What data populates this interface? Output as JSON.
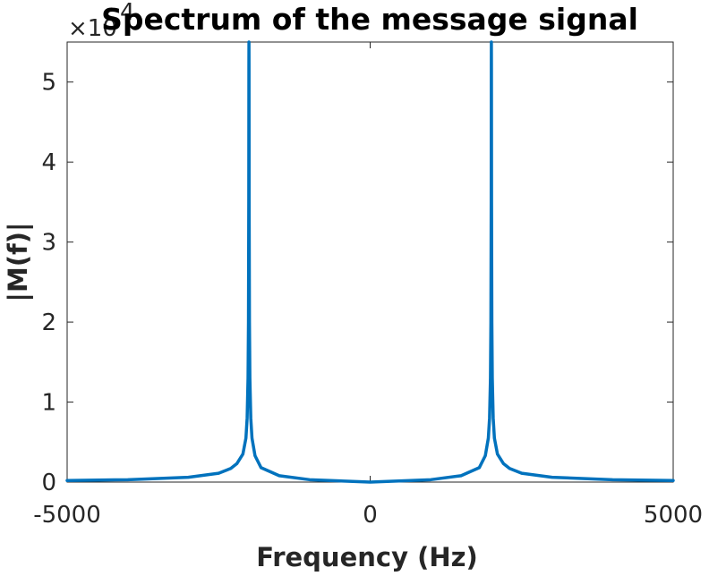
{
  "chart_data": {
    "type": "line",
    "title": "Spectrum of the message signal",
    "xlabel": "Frequency (Hz)",
    "ylabel": "|M(f)|",
    "xlim": [
      -5000,
      5000
    ],
    "ylim": [
      0,
      55000
    ],
    "x_ticks": [
      -5000,
      0,
      5000
    ],
    "x_tick_labels": [
      "-5000",
      "0",
      "5000"
    ],
    "y_ticks": [
      0,
      10000,
      20000,
      30000,
      40000,
      50000
    ],
    "y_tick_labels": [
      "0",
      "1",
      "2",
      "3",
      "4",
      "5"
    ],
    "y_exponent_label": "×10",
    "y_exponent_power": "4",
    "grid": false,
    "line_color": "#0072BD",
    "series": [
      {
        "x": [
          -5000,
          -4000,
          -3000,
          -2500,
          -2300,
          -2200,
          -2100,
          -2050,
          -2030,
          -2015,
          -2008,
          -2003,
          -2001,
          -2000,
          -1999,
          -1997,
          -1992,
          -1985,
          -1970,
          -1950,
          -1900,
          -1800,
          -1500,
          -1000,
          0,
          1000,
          1500,
          1800,
          1900,
          1950,
          1970,
          1985,
          1992,
          1997,
          1999,
          2000,
          2001,
          2003,
          2008,
          2015,
          2030,
          2050,
          2100,
          2200,
          2300,
          2500,
          3000,
          4000,
          5000
        ],
        "y": [
          200,
          300,
          600,
          1100,
          1700,
          2300,
          3500,
          5500,
          8000,
          13000,
          20000,
          35000,
          52000,
          55000,
          52000,
          35000,
          20000,
          13000,
          8000,
          5500,
          3300,
          1800,
          800,
          300,
          0,
          300,
          800,
          1800,
          3300,
          5500,
          8000,
          13000,
          20000,
          35000,
          52000,
          55000,
          52000,
          35000,
          20000,
          13000,
          8000,
          5500,
          3500,
          2300,
          1700,
          1100,
          600,
          300,
          200
        ]
      }
    ]
  }
}
